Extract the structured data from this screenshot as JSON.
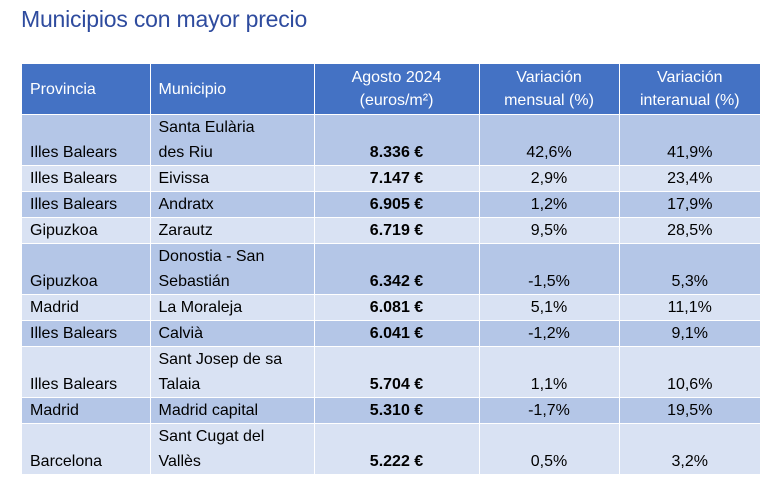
{
  "title": "Municipios con mayor precio",
  "table": {
    "headers": {
      "provincia": "Provincia",
      "municipio": "Municipio",
      "precio_l1": "Agosto 2024",
      "precio_l2": "(euros/m²)",
      "mensual_l1": "Variación",
      "mensual_l2": "mensual (%)",
      "interanual_l1": "Variación",
      "interanual_l2": "interanual (%)"
    },
    "rows": [
      {
        "provincia": "Illes Balears",
        "municipio_l1": "Santa Eulària",
        "municipio_l2": "des Riu",
        "precio": "8.336 €",
        "mensual": "42,6%",
        "interanual": "41,9%"
      },
      {
        "provincia": "Illes Balears",
        "municipio_l1": "Eivissa",
        "precio": "7.147 €",
        "mensual": "2,9%",
        "interanual": "23,4%"
      },
      {
        "provincia": "Illes Balears",
        "municipio_l1": "Andratx",
        "precio": "6.905 €",
        "mensual": "1,2%",
        "interanual": "17,9%"
      },
      {
        "provincia": "Gipuzkoa",
        "municipio_l1": "Zarautz",
        "precio": "6.719 €",
        "mensual": "9,5%",
        "interanual": "28,5%"
      },
      {
        "provincia": "Gipuzkoa",
        "municipio_l1": "Donostia - San",
        "municipio_l2": "Sebastián",
        "precio": "6.342 €",
        "mensual": "-1,5%",
        "interanual": "5,3%"
      },
      {
        "provincia": "Madrid",
        "municipio_l1": "La Moraleja",
        "precio": "6.081 €",
        "mensual": "5,1%",
        "interanual": "11,1%"
      },
      {
        "provincia": "Illes Balears",
        "municipio_l1": "Calvià",
        "precio": "6.041 €",
        "mensual": "-1,2%",
        "interanual": "9,1%"
      },
      {
        "provincia": "Illes Balears",
        "municipio_l1": "Sant Josep de sa",
        "municipio_l2": "Talaia",
        "precio": "5.704 €",
        "mensual": "1,1%",
        "interanual": "10,6%"
      },
      {
        "provincia": "Madrid",
        "municipio_l1": "Madrid capital",
        "precio": "5.310 €",
        "mensual": "-1,7%",
        "interanual": "19,5%"
      },
      {
        "provincia": "Barcelona",
        "municipio_l1": "Sant Cugat del",
        "municipio_l2": "Vallès",
        "precio": "5.222 €",
        "mensual": "0,5%",
        "interanual": "3,2%"
      }
    ]
  },
  "colors": {
    "title": "#2E4B9E",
    "header_bg": "#4472C4",
    "row_dark": "#B4C6E7",
    "row_light": "#D9E2F3",
    "negative": "#C00000"
  }
}
